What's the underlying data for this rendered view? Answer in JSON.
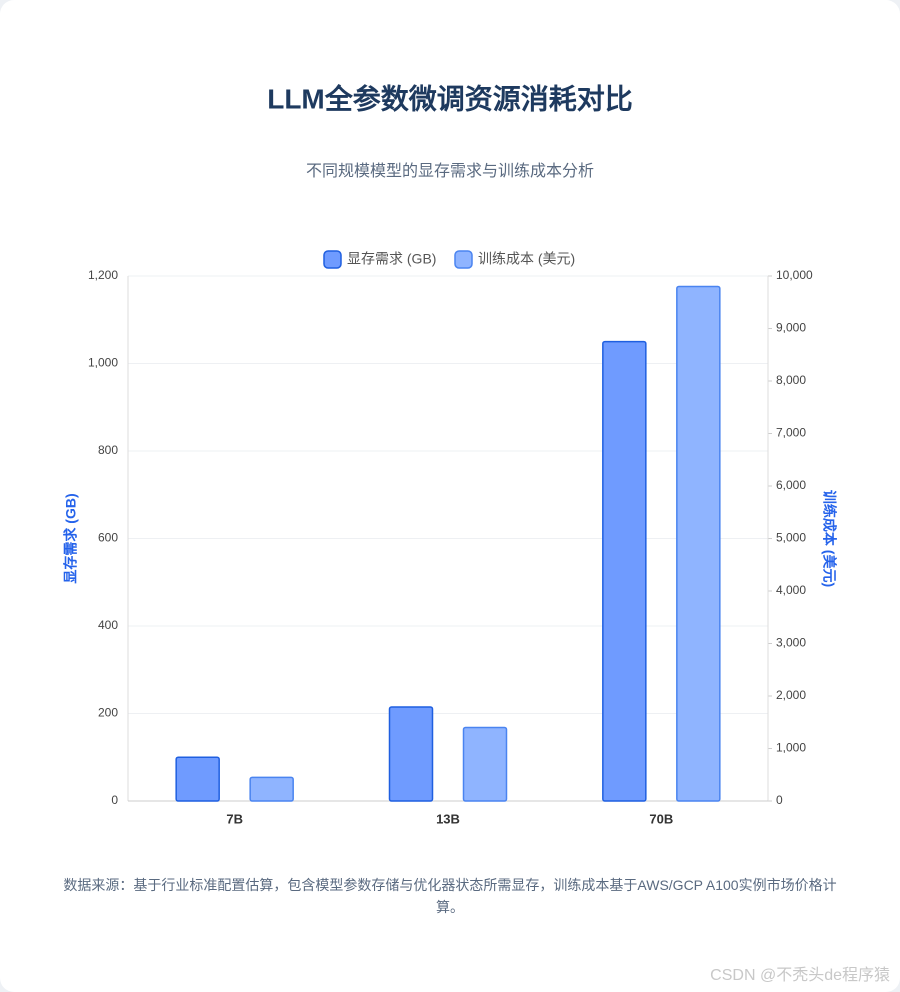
{
  "chart_data": {
    "type": "bar",
    "title": "LLM全参数微调资源消耗对比",
    "subtitle": "不同规模模型的显存需求与训练成本分析",
    "categories": [
      "7B",
      "13B",
      "70B"
    ],
    "series": [
      {
        "name": "显存需求 (GB)",
        "color": "#6f9bff",
        "border": "#1f5fe0",
        "values": [
          100,
          215,
          1050
        ]
      },
      {
        "name": "训练成本 (美元)",
        "color": "#8fb4ff",
        "border": "#4a84f0",
        "values": [
          450,
          1400,
          9800
        ],
        "axis": "y2"
      }
    ],
    "ylabel": "显存需求 (GB)",
    "y2label": "训练成本 (美元)",
    "ylim": [
      0,
      1200
    ],
    "yticks": [
      0,
      200,
      400,
      600,
      800,
      {
        "value": 1000,
        "label": "1,000"
      },
      {
        "value": 1200,
        "label": "1,200"
      }
    ],
    "y2lim": [
      0,
      10000
    ],
    "y2ticks": [
      0,
      {
        "value": 1000,
        "label": "1,000"
      },
      {
        "value": 2000,
        "label": "2,000"
      },
      {
        "value": 3000,
        "label": "3,000"
      },
      {
        "value": 4000,
        "label": "4,000"
      },
      {
        "value": 5000,
        "label": "5,000"
      },
      {
        "value": 6000,
        "label": "6,000"
      },
      {
        "value": 7000,
        "label": "7,000"
      },
      {
        "value": 8000,
        "label": "8,000"
      },
      {
        "value": 9000,
        "label": "9,000"
      },
      {
        "value": 10000,
        "label": "10,000"
      }
    ],
    "grid": true,
    "legend": "top",
    "note": "数据来源：基于行业标准配置估算，包含模型参数存储与优化器状态所需显存，训练成本基于AWS/GCP A100实例市场价格计算。",
    "watermark": "CSDN @不秃头de程序猿"
  }
}
